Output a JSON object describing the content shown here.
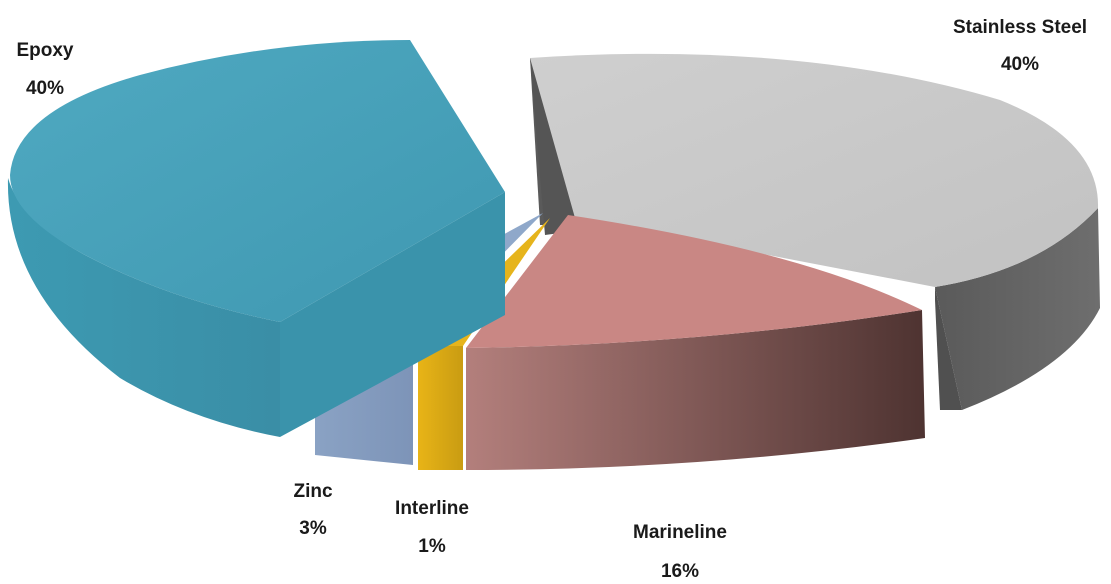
{
  "chart_data": {
    "type": "pie",
    "style": "3d-exploded",
    "title": "",
    "slices": [
      {
        "label": "Stainless Steel",
        "value": 40,
        "display": "40%",
        "color": "#c8c8c8"
      },
      {
        "label": "Marineline",
        "value": 16,
        "display": "16%",
        "color": "#c98784"
      },
      {
        "label": "Interline",
        "value": 1,
        "display": "1%",
        "color": "#e3b21c"
      },
      {
        "label": "Zinc",
        "value": 3,
        "display": "3%",
        "color": "#8ea6c8"
      },
      {
        "label": "Epoxy",
        "value": 40,
        "display": "40%",
        "color": "#459eb7"
      }
    ]
  }
}
